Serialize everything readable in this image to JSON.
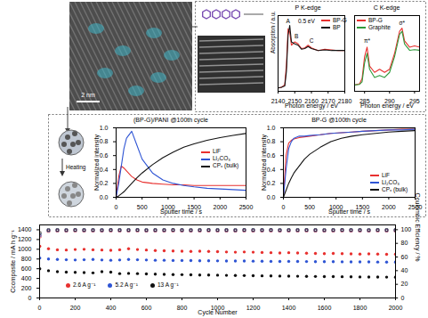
{
  "figure": {
    "tem_image": {
      "scale_bar": "2 nm"
    },
    "heating_schematic": {
      "label": "Heating"
    }
  },
  "chart_data": [
    {
      "type": "line",
      "title": "P K-edge",
      "xlabel": "Photon energy / eV",
      "ylabel": "Absorption / a.u.",
      "x": [
        2140,
        2142,
        2144,
        2145,
        2146,
        2147,
        2148,
        2150,
        2152,
        2154,
        2156,
        2158,
        2160,
        2164,
        2168,
        2172,
        2176,
        2180
      ],
      "series": [
        {
          "name": "BP-G",
          "color": "#e8312f",
          "values": [
            0.05,
            0.06,
            0.1,
            0.4,
            0.95,
            0.9,
            0.7,
            0.75,
            0.72,
            0.65,
            0.66,
            0.7,
            0.66,
            0.62,
            0.64,
            0.63,
            0.62,
            0.62
          ]
        },
        {
          "name": "BP",
          "color": "#111111",
          "values": [
            0.05,
            0.06,
            0.08,
            0.3,
            0.85,
            1.0,
            0.75,
            0.72,
            0.7,
            0.64,
            0.65,
            0.68,
            0.65,
            0.62,
            0.63,
            0.62,
            0.62,
            0.62
          ]
        }
      ],
      "xlim": [
        2140,
        2180
      ],
      "xticks": [
        2140,
        2150,
        2160,
        2170,
        2180
      ],
      "ylim": [
        0,
        1.15
      ],
      "tick_labels": "x",
      "grid": false,
      "legend": "upper right",
      "annotations": [
        {
          "text": "A",
          "x": 2146,
          "y": 1.06
        },
        {
          "text": "0.5 eV",
          "x": 2157,
          "y": 1.06
        },
        {
          "text": "B",
          "x": 2151,
          "y": 0.84
        },
        {
          "text": "C",
          "x": 2160,
          "y": 0.76
        }
      ]
    },
    {
      "type": "line",
      "title": "C K-edge",
      "xlabel": "Photon energy / eV",
      "x": [
        283,
        284,
        284.5,
        285,
        285.5,
        286,
        287,
        288,
        289,
        290,
        291,
        292,
        292.5,
        293,
        294,
        295,
        296
      ],
      "series": [
        {
          "name": "BP-G",
          "color": "#e8312f",
          "values": [
            0.1,
            0.12,
            0.2,
            0.55,
            0.7,
            0.4,
            0.3,
            0.35,
            0.3,
            0.35,
            0.6,
            0.95,
            1.0,
            0.8,
            0.7,
            0.72,
            0.7
          ]
        },
        {
          "name": "Graphite",
          "color": "#2e9a3a",
          "values": [
            0.1,
            0.11,
            0.15,
            0.45,
            0.6,
            0.35,
            0.22,
            0.25,
            0.22,
            0.3,
            0.55,
            0.9,
            0.95,
            0.75,
            0.65,
            0.66,
            0.65
          ]
        }
      ],
      "xlim": [
        283,
        296
      ],
      "xticks": [
        285,
        290,
        295
      ],
      "ylim": [
        0,
        1.2
      ],
      "tick_labels": "x",
      "grid": false,
      "legend": "upper left",
      "annotations": [
        {
          "text": "π*",
          "x": 285.5,
          "y": 0.8
        },
        {
          "text": "σ*",
          "x": 292.5,
          "y": 1.08
        }
      ]
    },
    {
      "type": "line",
      "title": "(BP-G)/PANI @100th cycle",
      "xlabel": "Sputter time / s",
      "ylabel": "Normalized intensity",
      "x": [
        0,
        50,
        100,
        150,
        200,
        300,
        400,
        500,
        700,
        900,
        1100,
        1300,
        1500,
        1750,
        2000,
        2250,
        2500
      ],
      "series": [
        {
          "name": "LiF",
          "color": "#e8312f",
          "values": [
            0,
            0.3,
            0.45,
            0.42,
            0.38,
            0.3,
            0.25,
            0.22,
            0.2,
            0.19,
            0.18,
            0.18,
            0.17,
            0.17,
            0.17,
            0.17,
            0.17
          ]
        },
        {
          "name": "Li₂CO₃",
          "color": "#2f55d4",
          "values": [
            0,
            0.2,
            0.45,
            0.7,
            0.85,
            0.95,
            0.75,
            0.55,
            0.35,
            0.25,
            0.2,
            0.17,
            0.15,
            0.13,
            0.12,
            0.11,
            0.1
          ]
        },
        {
          "name": "CPₓ (bulk)",
          "color": "#111111",
          "values": [
            0,
            0.02,
            0.05,
            0.08,
            0.12,
            0.2,
            0.28,
            0.35,
            0.47,
            0.57,
            0.65,
            0.72,
            0.77,
            0.82,
            0.86,
            0.89,
            0.92
          ]
        }
      ],
      "xlim": [
        0,
        2500
      ],
      "xticks": [
        0,
        500,
        1000,
        1500,
        2000,
        2500
      ],
      "ylim": [
        0,
        1
      ],
      "yticks": [
        {
          "value": 0,
          "label": "0.0"
        },
        0.2,
        0.4,
        0.6,
        0.8,
        {
          "value": 1,
          "label": "1.0"
        }
      ],
      "grid": false,
      "legend": "right"
    },
    {
      "type": "line",
      "title": "BP-G @100th cycle",
      "xlabel": "Sputter time / s",
      "ylabel": "Normalized intensity",
      "x": [
        0,
        50,
        100,
        150,
        200,
        300,
        400,
        500,
        700,
        900,
        1100,
        1300,
        1500,
        1750,
        2000,
        2250,
        2500
      ],
      "series": [
        {
          "name": "LiF",
          "color": "#e8312f",
          "values": [
            0,
            0.6,
            0.78,
            0.82,
            0.84,
            0.86,
            0.87,
            0.88,
            0.9,
            0.92,
            0.93,
            0.94,
            0.95,
            0.96,
            0.97,
            0.98,
            0.98
          ]
        },
        {
          "name": "Li₂CO₃",
          "color": "#2f55d4",
          "values": [
            0,
            0.4,
            0.7,
            0.8,
            0.85,
            0.88,
            0.88,
            0.89,
            0.9,
            0.92,
            0.93,
            0.94,
            0.95,
            0.96,
            0.97,
            0.97,
            0.98
          ]
        },
        {
          "name": "CPₓ (bulk)",
          "color": "#111111",
          "values": [
            0,
            0.1,
            0.2,
            0.28,
            0.35,
            0.45,
            0.55,
            0.62,
            0.72,
            0.8,
            0.85,
            0.88,
            0.9,
            0.92,
            0.94,
            0.95,
            0.96
          ]
        }
      ],
      "xlim": [
        0,
        2500
      ],
      "xticks": [
        0,
        500,
        1000,
        1500,
        2000,
        2500
      ],
      "ylim": [
        0,
        1
      ],
      "yticks": [
        {
          "value": 0,
          "label": "0.0"
        },
        0.2,
        0.4,
        0.6,
        0.8,
        {
          "value": 1,
          "label": "1.0"
        }
      ],
      "grid": false,
      "legend": "lower right"
    },
    {
      "type": "scatter",
      "xlabel": "Cycle Number",
      "ylabel": "Ccomposite / mA h g⁻¹",
      "y2label": "Coulombic Efficiency / %",
      "x": [
        1,
        50,
        100,
        150,
        200,
        250,
        300,
        350,
        400,
        450,
        500,
        550,
        600,
        650,
        700,
        750,
        800,
        850,
        900,
        950,
        1000,
        1050,
        1100,
        1150,
        1200,
        1250,
        1300,
        1350,
        1400,
        1450,
        1500,
        1550,
        1600,
        1650,
        1700,
        1750,
        1800,
        1850,
        1900,
        1950,
        2000
      ],
      "series": [
        {
          "name": "2.6 A g⁻¹",
          "color": "#e8312f",
          "marker": "circle",
          "values": [
            1060,
            1010,
            990,
            985,
            995,
            1000,
            990,
            985,
            980,
            990,
            1010,
            995,
            985,
            975,
            970,
            965,
            960,
            955,
            960,
            955,
            950,
            945,
            940,
            945,
            940,
            935,
            930,
            925,
            930,
            925,
            920,
            915,
            910,
            915,
            910,
            905,
            900,
            905,
            900,
            895,
            900
          ]
        },
        {
          "name": "5.2 A g⁻¹",
          "color": "#2f55d4",
          "marker": "circle",
          "values": [
            820,
            800,
            790,
            785,
            780,
            785,
            790,
            780,
            775,
            780,
            790,
            785,
            780,
            775,
            775,
            770,
            770,
            768,
            765,
            765,
            762,
            760,
            760,
            758,
            756,
            755,
            752,
            750,
            752,
            750,
            748,
            746,
            745,
            745,
            743,
            742,
            740,
            740,
            738,
            737,
            736
          ]
        },
        {
          "name": "13 A g⁻¹",
          "color": "#111111",
          "marker": "circle",
          "values": [
            600,
            560,
            540,
            530,
            525,
            520,
            515,
            540,
            530,
            500,
            505,
            500,
            495,
            490,
            485,
            480,
            478,
            475,
            472,
            470,
            468,
            465,
            462,
            460,
            458,
            455,
            452,
            450,
            448,
            446,
            444,
            442,
            440,
            438,
            436,
            434,
            432,
            430,
            430,
            428,
            426
          ]
        },
        {
          "color": "#e8312f",
          "marker": "square",
          "axis": "y2",
          "values": [
            90,
            98,
            98.5,
            98.4,
            98.6,
            98.5,
            98.5,
            98.4,
            98.6,
            98.5,
            98.5,
            98.6,
            98.4,
            98.5,
            98.5,
            98.6,
            98.5,
            98.4,
            98.5,
            98.6,
            98.5,
            98.5,
            98.4,
            98.6,
            98.5,
            98.5,
            98.6,
            98.4,
            98.5,
            98.5,
            98.6,
            98.5,
            98.4,
            98.5,
            98.6,
            98.5,
            98.5,
            98.4,
            98.6,
            98.5,
            98.5
          ]
        },
        {
          "color": "#2f55d4",
          "marker": "square",
          "axis": "y2",
          "values": [
            92,
            99,
            99.2,
            99.1,
            99.3,
            99.2,
            99.2,
            99.1,
            99.3,
            99.2,
            99.2,
            99.3,
            99.1,
            99.2,
            99.2,
            99.3,
            99.2,
            99.1,
            99.2,
            99.3,
            99.2,
            99.2,
            99.1,
            99.3,
            99.2,
            99.2,
            99.3,
            99.1,
            99.2,
            99.2,
            99.3,
            99.2,
            99.1,
            99.2,
            99.3,
            99.2,
            99.2,
            99.1,
            99.3,
            99.2,
            99.2
          ]
        },
        {
          "color": "#111111",
          "marker": "square",
          "axis": "y2",
          "values": [
            95,
            99.5,
            99.6,
            99.5,
            99.7,
            99.6,
            99.6,
            99.5,
            99.7,
            99.6,
            99.6,
            99.7,
            99.5,
            99.6,
            99.6,
            99.7,
            99.6,
            99.5,
            99.6,
            99.7,
            99.6,
            99.6,
            99.5,
            99.7,
            99.6,
            99.6,
            99.7,
            99.5,
            99.6,
            99.6,
            99.7,
            99.6,
            99.5,
            99.6,
            99.7,
            99.6,
            99.6,
            99.5,
            99.7,
            99.6,
            99.6
          ]
        }
      ],
      "xlim": [
        0,
        2000
      ],
      "xticks": [
        0,
        200,
        400,
        600,
        800,
        1000,
        1200,
        1400,
        1600,
        1800,
        2000
      ],
      "ylim": [
        0,
        1500
      ],
      "yticks": [
        0,
        200,
        400,
        600,
        800,
        1000,
        1200,
        1400
      ],
      "y2lim": [
        0,
        107
      ],
      "y2ticks": [
        0,
        20,
        40,
        60,
        80,
        100
      ],
      "grid": false,
      "legend": "lower left"
    }
  ]
}
